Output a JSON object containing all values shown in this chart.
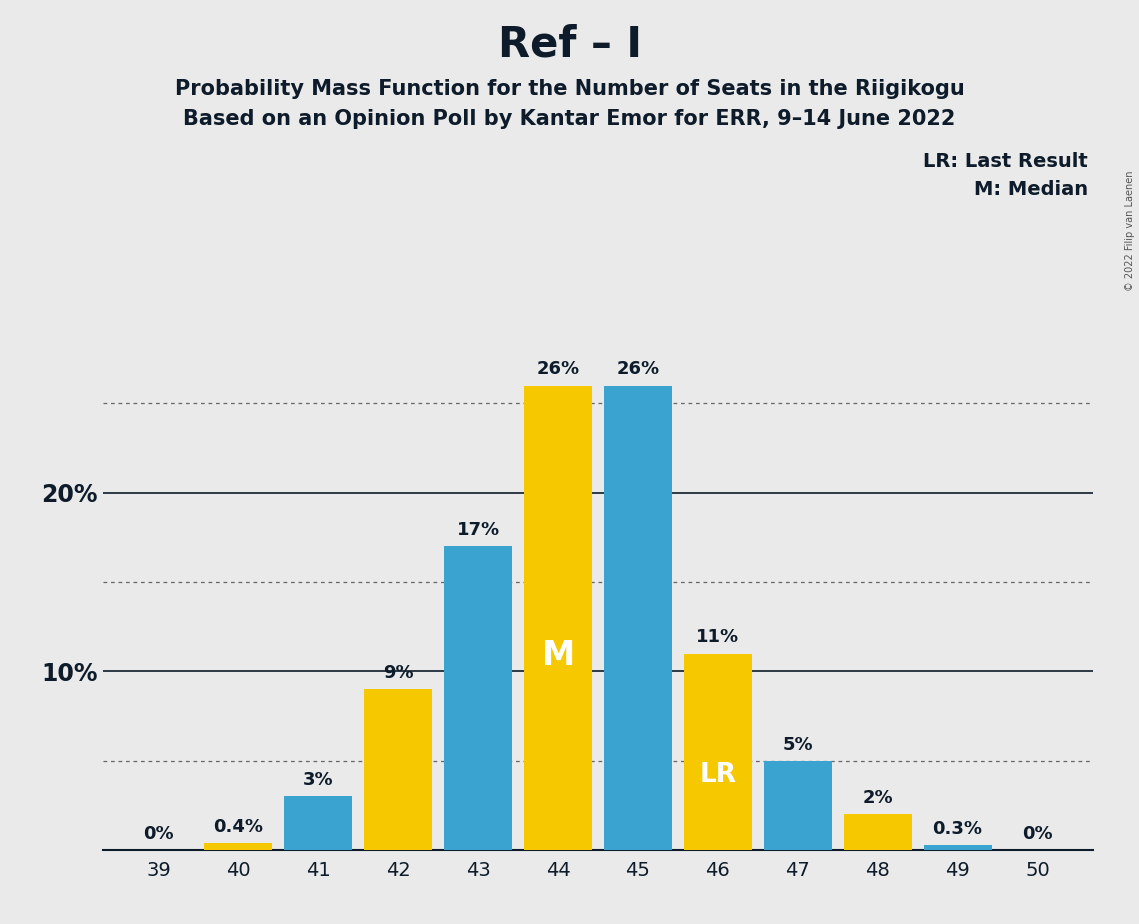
{
  "title": "Ref – I",
  "subtitle1": "Probability Mass Function for the Number of Seats in the Riigikogu",
  "subtitle2": "Based on an Opinion Poll by Kantar Emor for ERR, 9–14 June 2022",
  "copyright": "© 2022 Filip van Laenen",
  "seats": [
    39,
    40,
    41,
    42,
    43,
    44,
    45,
    46,
    47,
    48,
    49,
    50
  ],
  "values": [
    0.0,
    0.4,
    3.0,
    9.0,
    17.0,
    26.0,
    26.0,
    11.0,
    5.0,
    2.0,
    0.3,
    0.0
  ],
  "colors": [
    "#F5C800",
    "#F5C800",
    "#3BA3D0",
    "#F5C800",
    "#3BA3D0",
    "#F5C800",
    "#3BA3D0",
    "#F5C800",
    "#3BA3D0",
    "#F5C800",
    "#3BA3D0",
    "#F5C800"
  ],
  "labels": [
    "0%",
    "0.4%",
    "3%",
    "9%",
    "17%",
    "26%",
    "26%",
    "11%",
    "5%",
    "2%",
    "0.3%",
    "0%"
  ],
  "median_seat": 44,
  "lr_seat": 46,
  "background_color": "#EAEAEA",
  "bar_blue": "#3BA3D0",
  "bar_yellow": "#F5C800",
  "title_fontsize": 30,
  "subtitle_fontsize": 15,
  "legend_lr": "LR: Last Result",
  "legend_m": "M: Median",
  "text_color": "#0D1B2A",
  "ylim": [
    0,
    30
  ],
  "solid_gridlines": [
    10,
    20
  ],
  "dotted_gridlines": [
    5,
    15,
    25
  ]
}
